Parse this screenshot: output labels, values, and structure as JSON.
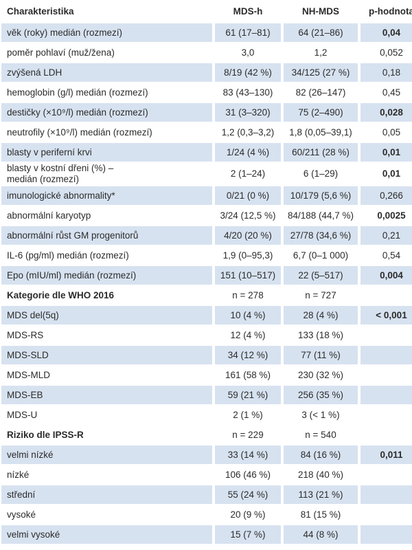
{
  "header": [
    "Charakteristika",
    "MDS-h",
    "NH-MDS",
    "p-hodnota"
  ],
  "rows": [
    {
      "label": "věk (roky) medián (rozmezí)",
      "a": "61 (17–81)",
      "b": "64 (21–86)",
      "p": "0,04",
      "bold": true
    },
    {
      "label": "poměr pohlaví (muž/žena)",
      "a": "3,0",
      "b": "1,2",
      "p": "0,052",
      "bold": false
    },
    {
      "label": "zvýšená LDH",
      "a": "8/19 (42 %)",
      "b": "34/125 (27 %)",
      "p": "0,18",
      "bold": false
    },
    {
      "label": "hemoglobin (g/l) medián (rozmezí)",
      "a": "83 (43–130)",
      "b": "82 (26–147)",
      "p": "0,45",
      "bold": false
    },
    {
      "label": "destičky (×10⁹/l) medián (rozmezí)",
      "a": "31 (3–320)",
      "b": "75 (2–490)",
      "p": "0,028",
      "bold": true
    },
    {
      "label": "neutrofily (×10⁹/l) medián (rozmezí)",
      "a": "1,2 (0,3–3,2)",
      "b": "1,8 (0,05–39,1)",
      "p": "0,05",
      "bold": false
    },
    {
      "label": "blasty v periferní krvi",
      "a": "1/24 (4 %)",
      "b": "60/211 (28 %)",
      "p": "0,01",
      "bold": true
    },
    {
      "label": "blasty v kostní dřeni (%) –",
      "label2": "medián (rozmezí)",
      "a": "2 (1–24)",
      "b": "6 (1–29)",
      "p": "0,01",
      "bold": true
    },
    {
      "label": "imunologické abnormality*",
      "a": "0/21 (0 %)",
      "b": "10/179 (5,6 %)",
      "p": "0,266",
      "bold": false
    },
    {
      "label": "abnormální karyotyp",
      "a": "3/24 (12,5 %)",
      "b": "84/188 (44,7 %)",
      "p": "0,0025",
      "bold": true
    },
    {
      "label": "abnormální růst GM progenitorů",
      "a": "4/20 (20 %)",
      "b": "27/78 (34,6 %)",
      "p": "0,21",
      "bold": false
    },
    {
      "label": "IL-6 (pg/ml) medián (rozmezí)",
      "a": "1,9 (0–95,3)",
      "b": "6,7 (0–1 000)",
      "p": "0,54",
      "bold": false
    },
    {
      "label": "Epo (mIU/ml) medián (rozmezí)",
      "a": "151 (10–517)",
      "b": "22 (5–517)",
      "p": "0,004",
      "bold": true
    }
  ],
  "who": {
    "title": "Kategorie dle WHO 2016",
    "a": "n = 278",
    "b": "n = 727",
    "p": "",
    "rows": [
      {
        "label": "MDS del(5q)",
        "a": "10 (4 %)",
        "b": "28 (4 %)",
        "p": "< 0,001",
        "bold": true
      },
      {
        "label": "MDS-RS",
        "a": "12 (4 %)",
        "b": "133 (18 %)",
        "p": "",
        "bold": false
      },
      {
        "label": "MDS-SLD",
        "a": "34 (12 %)",
        "b": "77 (11 %)",
        "p": "",
        "bold": false
      },
      {
        "label": "MDS-MLD",
        "a": "161 (58 %)",
        "b": "230 (32 %)",
        "p": "",
        "bold": false
      },
      {
        "label": "MDS-EB",
        "a": "59 (21 %)",
        "b": "256 (35 %)",
        "p": "",
        "bold": false
      },
      {
        "label": "MDS-U",
        "a": "2 (1 %)",
        "b": "3 (< 1 %)",
        "p": "",
        "bold": false
      }
    ]
  },
  "ipss": {
    "title": "Riziko dle IPSS-R",
    "a": "n = 229",
    "b": "n = 540",
    "p": "",
    "rows": [
      {
        "label": "velmi nízké",
        "a": "33 (14 %)",
        "b": "84 (16 %)",
        "p": "0,011",
        "bold": true
      },
      {
        "label": "nízké",
        "a": "106 (46 %)",
        "b": "218 (40 %)",
        "p": "",
        "bold": false
      },
      {
        "label": "střední",
        "a": "55 (24 %)",
        "b": "113 (21 %)",
        "p": "",
        "bold": false
      },
      {
        "label": "vysoké",
        "a": "20 (9 %)",
        "b": "81 (15 %)",
        "p": "",
        "bold": false
      },
      {
        "label": "velmi vysoké",
        "a": "15 (7 %)",
        "b": "44 (8 %)",
        "p": "",
        "bold": false
      }
    ]
  },
  "colors": {
    "row_shade": "#d7e2f0",
    "text": "#2b2b2b"
  }
}
